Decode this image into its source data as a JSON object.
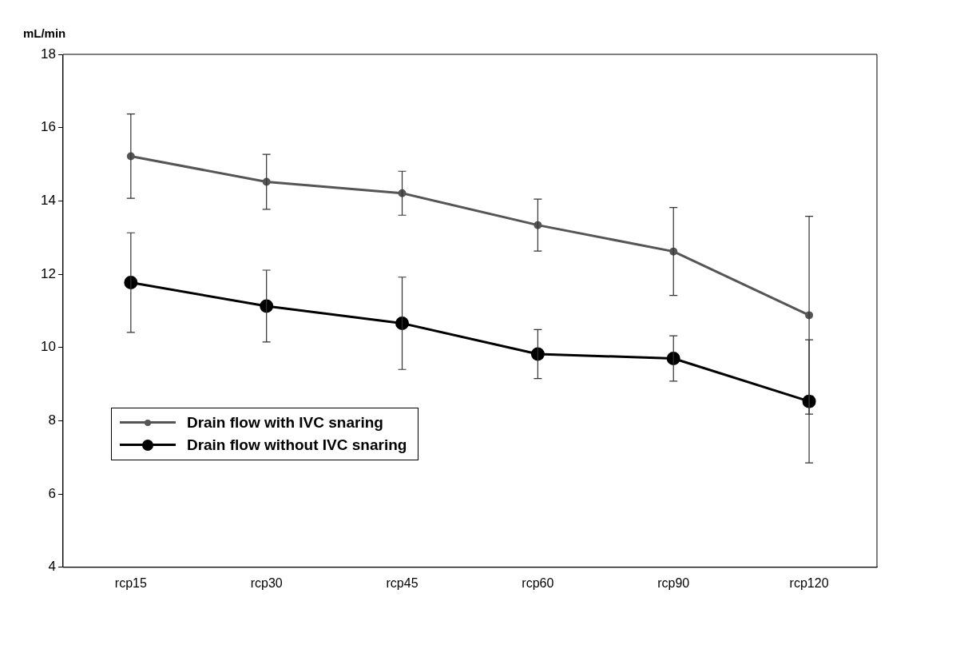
{
  "chart_data": {
    "type": "line",
    "ylabel": "mL/min",
    "categories": [
      "rcp15",
      "rcp30",
      "rcp45",
      "rcp60",
      "rcp90",
      "rcp120"
    ],
    "series": [
      {
        "name": "Drain flow with IVC snaring",
        "color": "#555555",
        "values": [
          15.22,
          14.52,
          14.21,
          13.34,
          12.62,
          10.88
        ],
        "errors": [
          1.15,
          0.75,
          0.6,
          0.71,
          1.2,
          2.7
        ]
      },
      {
        "name": "Drain flow without IVC snaring",
        "color": "#000000",
        "values": [
          11.77,
          11.13,
          10.66,
          9.82,
          9.7,
          8.53
        ],
        "errors": [
          1.36,
          0.98,
          1.26,
          0.67,
          0.62,
          1.68
        ]
      }
    ],
    "ylim": [
      4,
      18
    ],
    "yticks": [
      4,
      6,
      8,
      10,
      12,
      14,
      16,
      18
    ],
    "grid": false,
    "legend": "bottom left",
    "marker": "circle",
    "line_style": "solid"
  }
}
